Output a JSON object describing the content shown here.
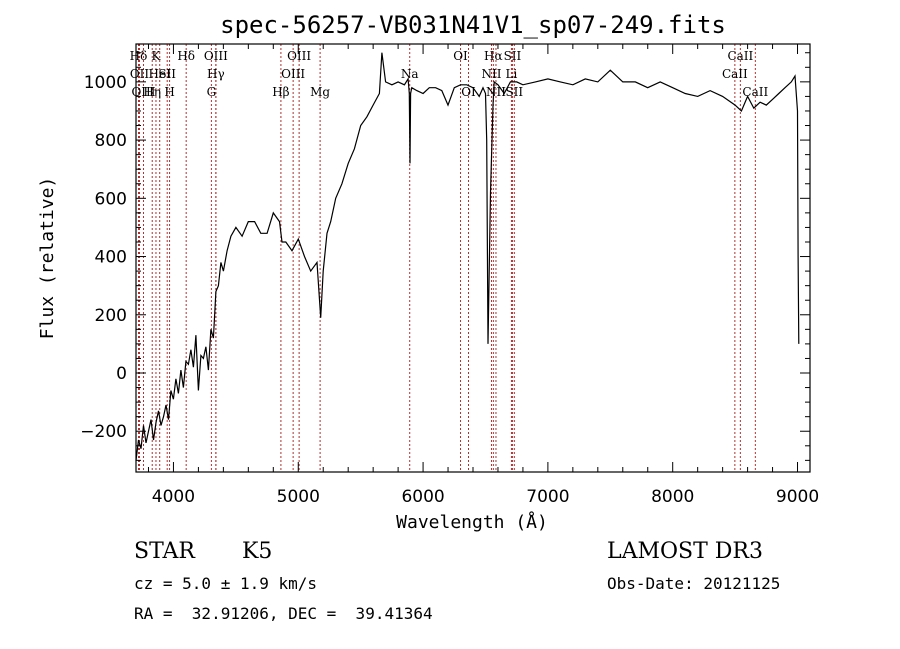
{
  "chart_data": {
    "type": "line",
    "title": "spec-56257-VB031N41V1_sp07-249.fits",
    "xlabel": "Wavelength (Å)",
    "ylabel": "Flux (relative)",
    "xlim": [
      3700,
      9100
    ],
    "ylim": [
      -340,
      1130
    ],
    "xticks": [
      4000,
      5000,
      6000,
      7000,
      8000,
      9000
    ],
    "yticks": [
      -200,
      0,
      200,
      400,
      600,
      800,
      1000
    ],
    "grid": false,
    "series": [
      {
        "x": [
          3700,
          3720,
          3740,
          3760,
          3780,
          3800,
          3820,
          3840,
          3860,
          3880,
          3900,
          3920,
          3940,
          3960,
          3980,
          4000,
          4020,
          4040,
          4060,
          4080,
          4100,
          4120,
          4140,
          4160,
          4180,
          4200,
          4220,
          4240,
          4260,
          4280,
          4300,
          4320,
          4340,
          4360,
          4380,
          4400,
          4430,
          4460,
          4500,
          4550,
          4600,
          4650,
          4700,
          4750,
          4800,
          4850,
          4870,
          4900,
          4950,
          5000,
          5050,
          5100,
          5150,
          5180,
          5200,
          5230,
          5260,
          5300,
          5350,
          5400,
          5450,
          5500,
          5550,
          5600,
          5650,
          5670,
          5700,
          5750,
          5800,
          5850,
          5880,
          5890,
          5895,
          5900,
          5910,
          5950,
          6000,
          6050,
          6100,
          6150,
          6200,
          6250,
          6300,
          6350,
          6400,
          6450,
          6480,
          6500,
          6510,
          6520,
          6540,
          6560,
          6570,
          6600,
          6650,
          6700,
          6750,
          6800,
          6900,
          7000,
          7100,
          7200,
          7300,
          7400,
          7500,
          7600,
          7700,
          7800,
          7900,
          8000,
          8100,
          8200,
          8300,
          8400,
          8500,
          8550,
          8600,
          8650,
          8700,
          8750,
          8800,
          8850,
          8900,
          8950,
          8980,
          9000,
          9005,
          9010
        ],
        "y": [
          -300,
          -230,
          -260,
          -180,
          -240,
          -200,
          -160,
          -230,
          -170,
          -130,
          -180,
          -150,
          -110,
          -160,
          -60,
          -90,
          -20,
          -70,
          10,
          -50,
          40,
          30,
          80,
          20,
          130,
          -60,
          60,
          50,
          90,
          10,
          150,
          120,
          280,
          300,
          380,
          350,
          420,
          470,
          500,
          470,
          520,
          520,
          480,
          480,
          550,
          520,
          450,
          450,
          420,
          460,
          400,
          350,
          380,
          190,
          350,
          480,
          520,
          600,
          650,
          720,
          770,
          850,
          880,
          920,
          960,
          1100,
          1000,
          990,
          1000,
          990,
          1010,
          960,
          720,
          960,
          980,
          970,
          960,
          980,
          980,
          970,
          920,
          980,
          990,
          990,
          980,
          950,
          980,
          960,
          800,
          100,
          620,
          920,
          1000,
          990,
          960,
          1000,
          1000,
          990,
          1000,
          1010,
          1000,
          990,
          1010,
          1000,
          1040,
          1000,
          1000,
          980,
          1000,
          980,
          960,
          950,
          970,
          950,
          920,
          900,
          950,
          910,
          930,
          920,
          940,
          960,
          980,
          1000,
          1020,
          900,
          400,
          100
        ]
      }
    ],
    "lines": [
      {
        "label": "Hδ",
        "x": 3720,
        "row": 1
      },
      {
        "label": "OII",
        "x": 3728,
        "row": 2
      },
      {
        "label": "OIII",
        "x": 3760,
        "row": 3
      },
      {
        "label": "K",
        "x": 3860,
        "row": 1
      },
      {
        "label": "HeI",
        "x": 3890,
        "row": 2
      },
      {
        "label": "Hη",
        "x": 3830,
        "row": 3
      },
      {
        "label": "SII",
        "x": 3950,
        "row": 2
      },
      {
        "label": "H",
        "x": 3969,
        "row": 3
      },
      {
        "label": "Hδ",
        "x": 4102,
        "row": 1
      },
      {
        "label": "OIII",
        "x": 4340,
        "row": 1
      },
      {
        "label": "Hγ",
        "x": 4340,
        "row": 2
      },
      {
        "label": "G",
        "x": 4304,
        "row": 3
      },
      {
        "label": "Hβ",
        "x": 4861,
        "row": 3
      },
      {
        "label": "OIII",
        "x": 5007,
        "row": 1
      },
      {
        "label": "OIII",
        "x": 4959,
        "row": 2
      },
      {
        "label": "Mg",
        "x": 5175,
        "row": 3
      },
      {
        "label": "Na",
        "x": 5893,
        "row": 2
      },
      {
        "label": "OI",
        "x": 6300,
        "row": 1
      },
      {
        "label": "OI",
        "x": 6364,
        "row": 3
      },
      {
        "label": "Hα",
        "x": 6563,
        "row": 1
      },
      {
        "label": "SII",
        "x": 6716,
        "row": 1
      },
      {
        "label": "NII",
        "x": 6548,
        "row": 2
      },
      {
        "label": "Li",
        "x": 6708,
        "row": 2
      },
      {
        "label": "NII",
        "x": 6584,
        "row": 3
      },
      {
        "label": "SII",
        "x": 6731,
        "row": 3
      },
      {
        "label": "CaII",
        "x": 8542,
        "row": 1
      },
      {
        "label": "CaII",
        "x": 8498,
        "row": 2
      },
      {
        "label": "CaII",
        "x": 8662,
        "row": 3
      }
    ],
    "line_color": "#b03030"
  },
  "info": {
    "class_label": "STAR",
    "subclass": "K5",
    "survey": "LAMOST DR3",
    "cz": "cz = 5.0 ± 1.9 km/s",
    "obs_date": "Obs-Date: 20121125",
    "radec": "RA =  32.91206, DEC =  39.41364"
  }
}
